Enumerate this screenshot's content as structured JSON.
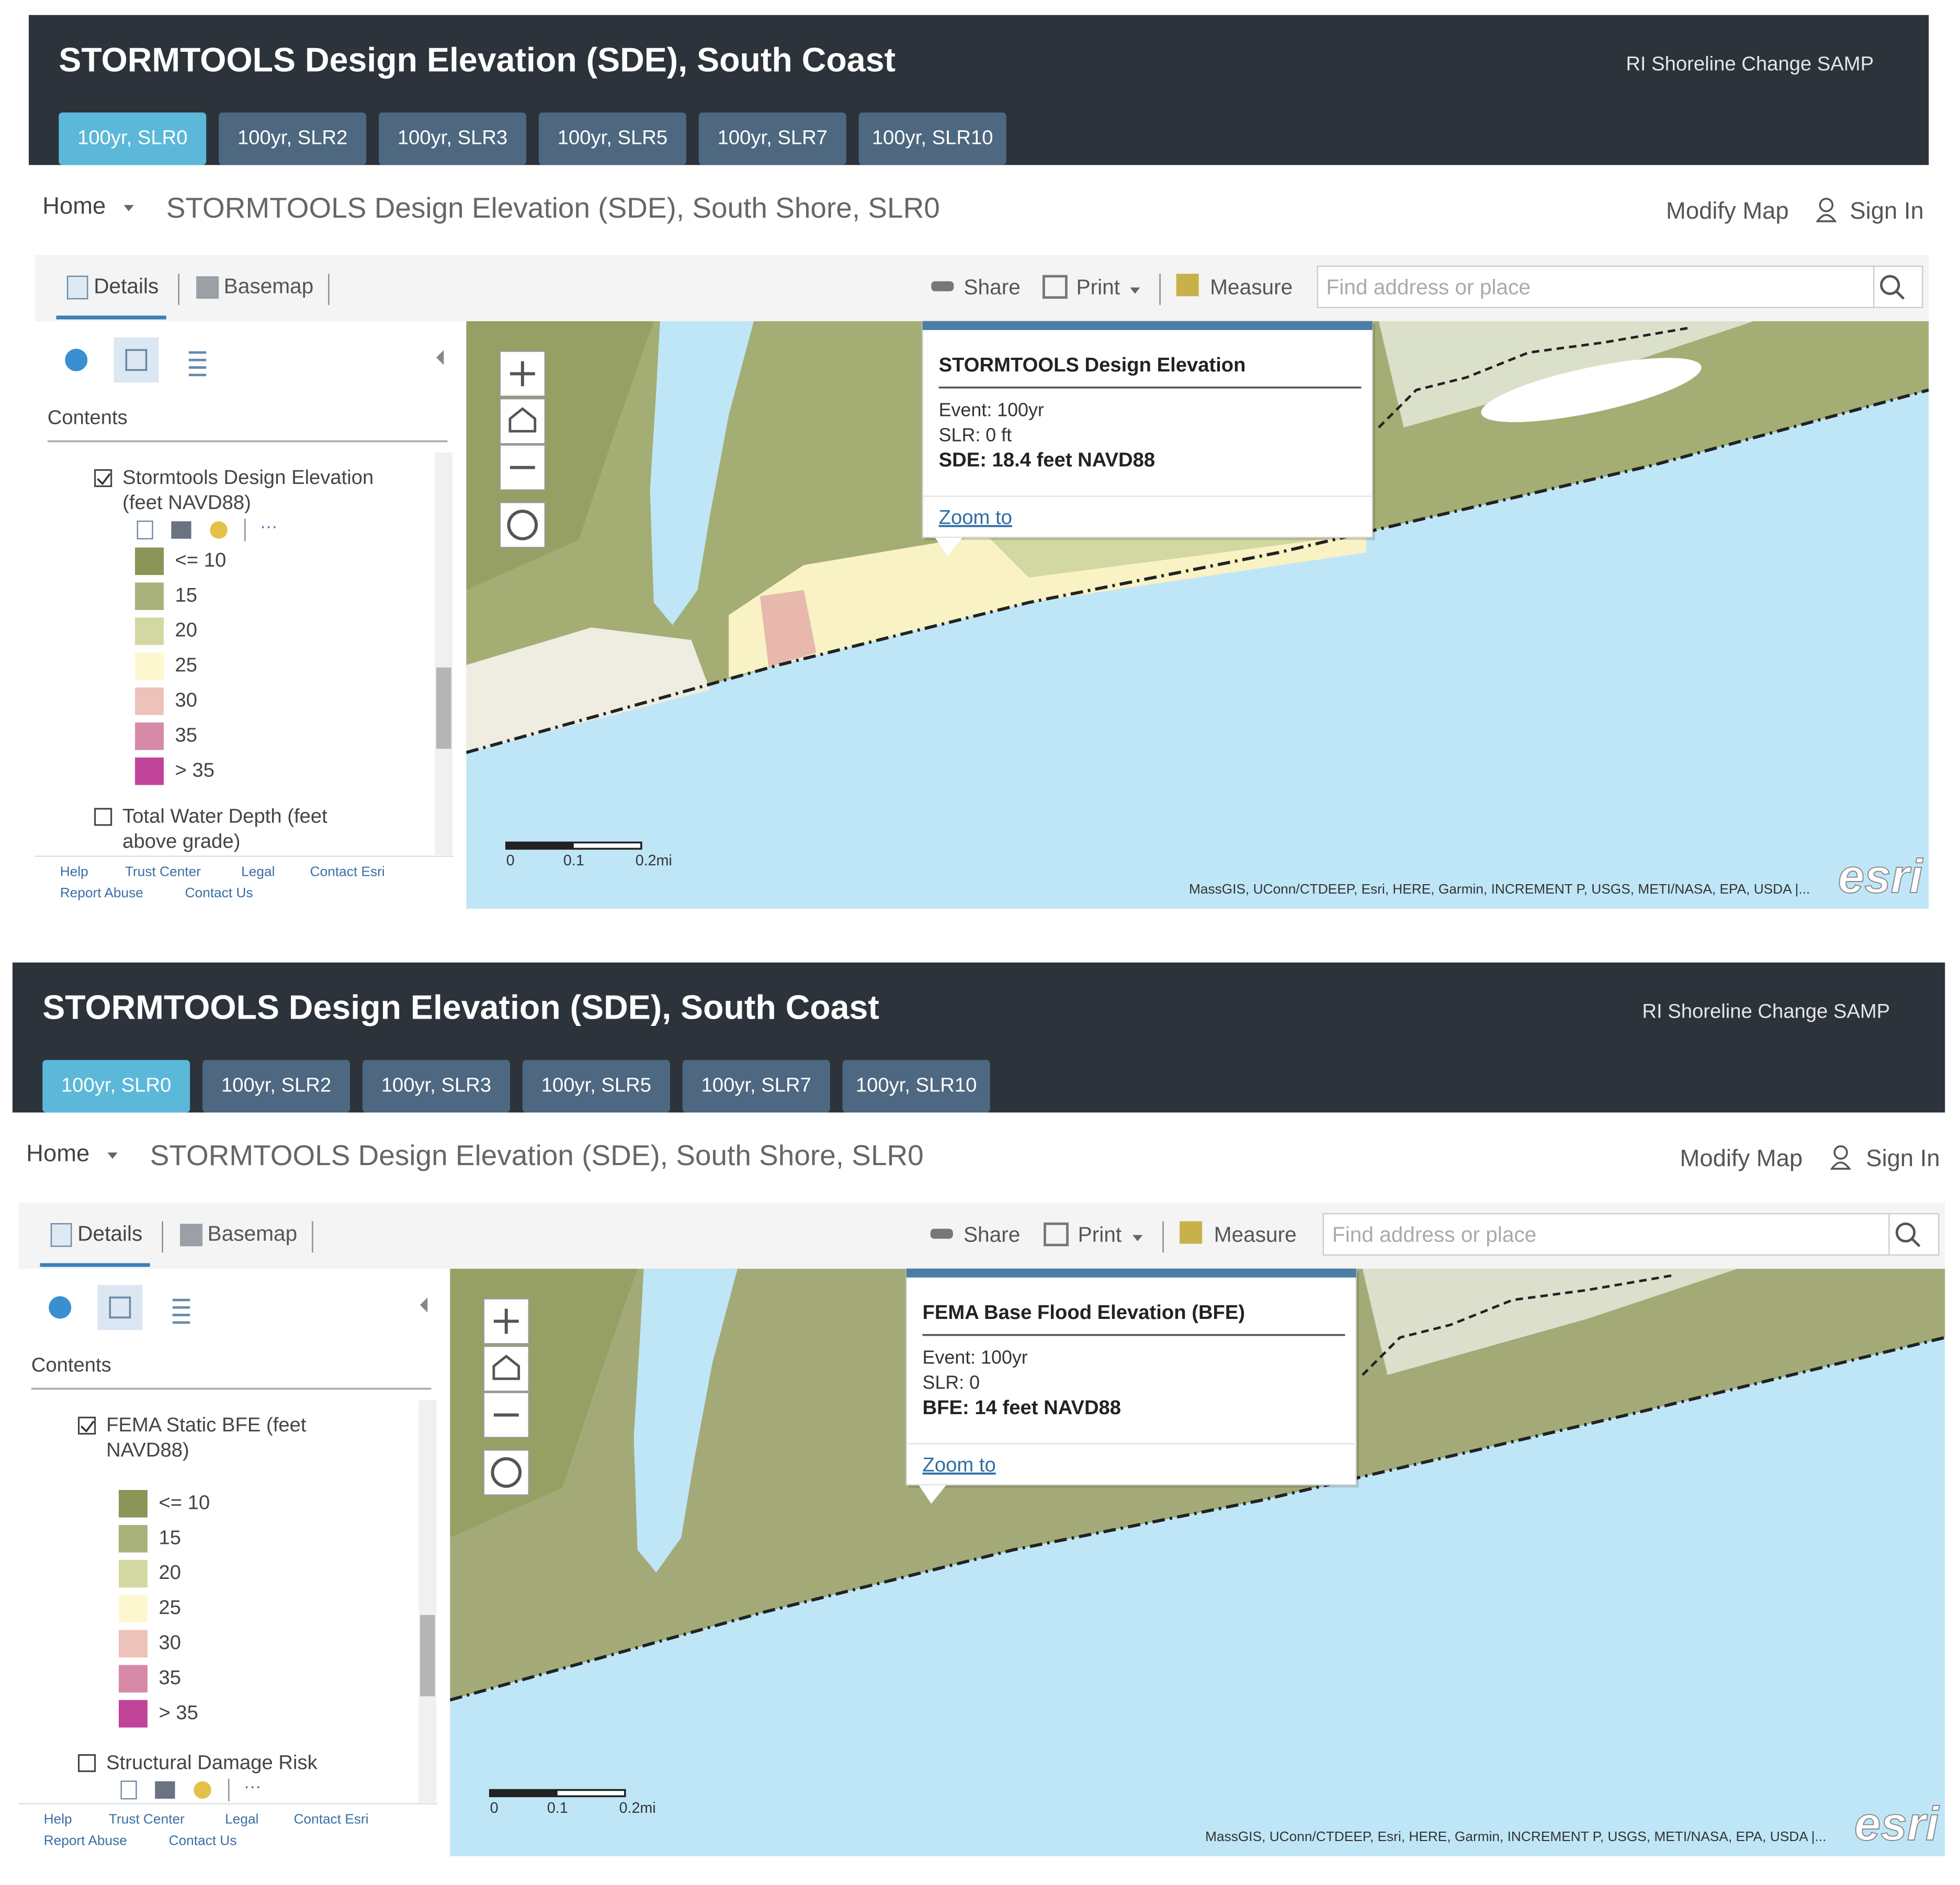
{
  "panels": [
    {
      "header": {
        "title": "STORMTOOLS Design Elevation (SDE), South Coast",
        "right": "RI Shoreline Change SAMP"
      },
      "tabs": [
        "100yr, SLR0",
        "100yr, SLR2",
        "100yr, SLR3",
        "100yr, SLR5",
        "100yr, SLR7",
        "100yr, SLR10"
      ],
      "nav": {
        "home": "Home",
        "map_title": "STORMTOOLS Design Elevation (SDE), South Shore, SLR0",
        "modify": "Modify Map",
        "sign_in": "Sign In"
      },
      "toolbar": {
        "details": "Details",
        "basemap": "Basemap",
        "share": "Share",
        "print": "Print",
        "measure": "Measure",
        "search": "Find address or place"
      },
      "contents": {
        "heading": "Contents",
        "layers": [
          {
            "name_lines": [
              "Stormtools Design Elevation",
              "(feet NAVD88)"
            ],
            "checked": true,
            "tools": true
          },
          {
            "name_lines": [
              "Total Water Depth (feet",
              "above grade)"
            ],
            "checked": false,
            "tools": false
          }
        ],
        "legend": [
          {
            "label": "<= 10",
            "color": "#8a9557"
          },
          {
            "label": "15",
            "color": "#a9b27a"
          },
          {
            "label": "20",
            "color": "#d3d7a2"
          },
          {
            "label": "25",
            "color": "#fdf8cf"
          },
          {
            "label": "30",
            "color": "#edc2b8"
          },
          {
            "label": "35",
            "color": "#d68aa8"
          },
          {
            "label": "> 35",
            "color": "#c0449a"
          }
        ]
      },
      "popup": {
        "title": "STORMTOOLS Design Elevation",
        "lines": [
          "Event: 100yr",
          "SLR: 0 ft"
        ],
        "bold_line": "SDE: 18.4 feet NAVD88",
        "link": "Zoom to"
      },
      "scale": [
        "0",
        "0.1",
        "0.2mi"
      ],
      "footer_links": [
        "Help",
        "Trust Center",
        "Legal",
        "Contact Esri",
        "Report Abuse",
        "Contact Us"
      ],
      "attribution": "MassGIS, UConn/CTDEEP, Esri, HERE, Garmin, INCREMENT P, USGS, METI/NASA, EPA, USDA |...",
      "logo": "esri"
    },
    {
      "header": {
        "title": "STORMTOOLS Design Elevation (SDE), South Coast",
        "right": "RI Shoreline Change SAMP"
      },
      "tabs": [
        "100yr, SLR0",
        "100yr, SLR2",
        "100yr, SLR3",
        "100yr, SLR5",
        "100yr, SLR7",
        "100yr, SLR10"
      ],
      "nav": {
        "home": "Home",
        "map_title": "STORMTOOLS Design Elevation (SDE), South Shore, SLR0",
        "modify": "Modify Map",
        "sign_in": "Sign In"
      },
      "toolbar": {
        "details": "Details",
        "basemap": "Basemap",
        "share": "Share",
        "print": "Print",
        "measure": "Measure",
        "search": "Find address or place"
      },
      "contents": {
        "heading": "Contents",
        "layers": [
          {
            "name_lines": [
              "FEMA Static BFE (feet",
              "NAVD88)"
            ],
            "checked": true,
            "tools": false
          },
          {
            "name_lines": [
              "Structural Damage Risk"
            ],
            "checked": false,
            "tools": true
          }
        ],
        "legend": [
          {
            "label": "<= 10",
            "color": "#8a9557"
          },
          {
            "label": "15",
            "color": "#a9b27a"
          },
          {
            "label": "20",
            "color": "#d3d7a2"
          },
          {
            "label": "25",
            "color": "#fdf8cf"
          },
          {
            "label": "30",
            "color": "#edc2b8"
          },
          {
            "label": "35",
            "color": "#d68aa8"
          },
          {
            "label": "> 35",
            "color": "#c0449a"
          }
        ]
      },
      "popup": {
        "title": "FEMA Base Flood Elevation (BFE)",
        "lines": [
          "Event: 100yr",
          "SLR: 0"
        ],
        "bold_line": "BFE: 14 feet NAVD88",
        "link": "Zoom to"
      },
      "scale": [
        "0",
        "0.1",
        "0.2mi"
      ],
      "footer_links": [
        "Help",
        "Trust Center",
        "Legal",
        "Contact Esri",
        "Report Abuse",
        "Contact Us"
      ],
      "attribution": "MassGIS, UConn/CTDEEP, Esri, HERE, Garmin, INCREMENT P, USGS, METI/NASA, EPA, USDA |...",
      "logo": "esri"
    }
  ]
}
